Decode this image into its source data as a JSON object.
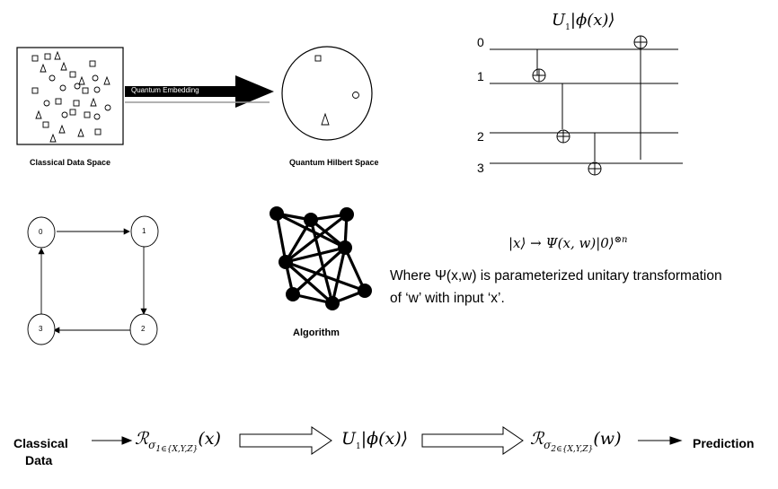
{
  "embedding": {
    "classical_label": "Classical Data Space",
    "arrow_label": "Quantum Embedding",
    "hilbert_label": "Quantum Hilbert Space"
  },
  "circuit": {
    "title_op": "U",
    "title_sub": "1",
    "title_state": "|ϕ(x)⟩",
    "wire_labels": [
      "0",
      "1",
      "2",
      "3"
    ]
  },
  "cycle_graph": {
    "nodes": [
      "0",
      "1",
      "2",
      "3"
    ]
  },
  "network": {
    "label": "Algorithm"
  },
  "equation": {
    "ket_x": "|x⟩",
    "arrow": "→",
    "psi": "Ψ(x, w)|0⟩",
    "tensor_power": "⊗n",
    "description_line1": "Where Ψ(x,w) is parameterized unitary transformation",
    "description_line2": "of ‘w’ with input ‘x’."
  },
  "pipeline": {
    "input_line1": "Classical",
    "input_line2": "Data",
    "rotation1_op": "ℛ",
    "rotation1_sub": "σ",
    "rotation1_subsub": "1∈{X,Y,Z}",
    "rotation1_arg": "(x)",
    "unitary_op": "U",
    "unitary_sub": "1",
    "unitary_state": "|ϕ(x)⟩",
    "rotation2_op": "ℛ",
    "rotation2_sub": "σ",
    "rotation2_subsub": "2∈{X,Y,Z}",
    "rotation2_arg": "(w)",
    "output": "Prediction"
  }
}
